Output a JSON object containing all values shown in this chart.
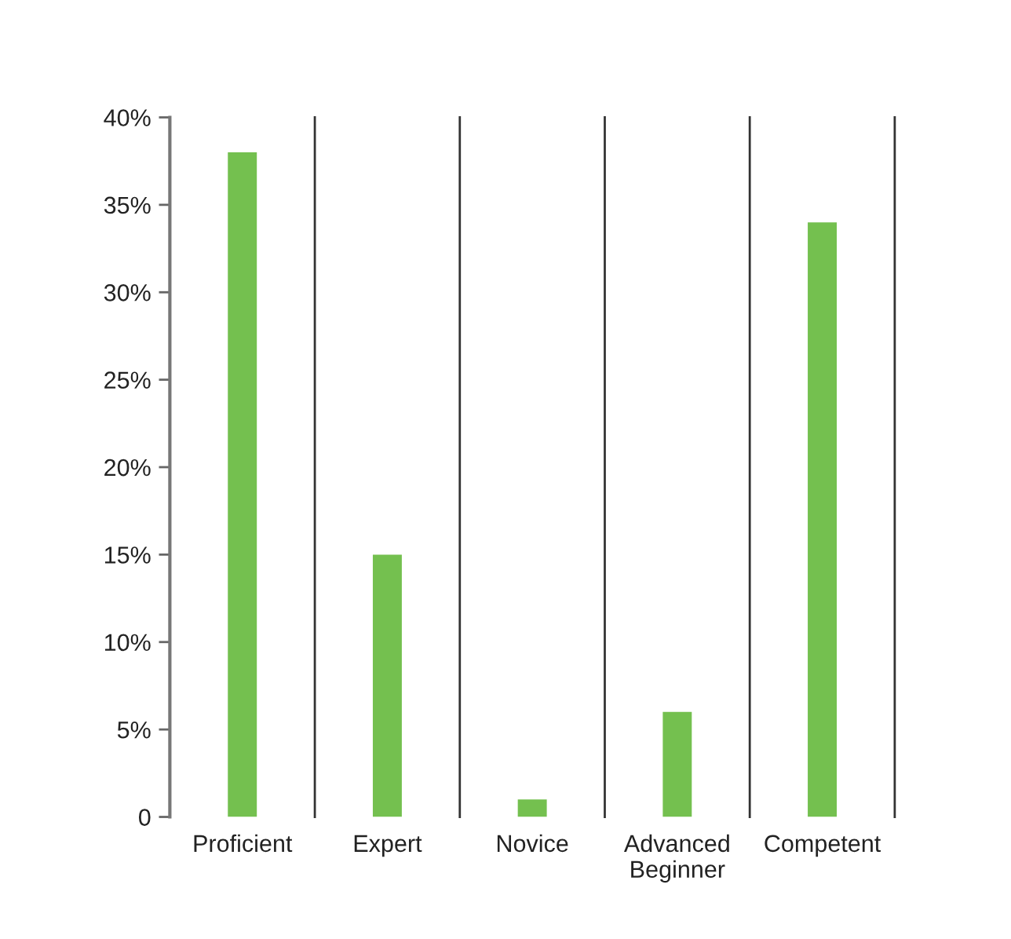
{
  "chart_data": {
    "type": "bar",
    "categories": [
      "Proficient",
      "Expert",
      "Novice",
      "Advanced Beginner",
      "Competent"
    ],
    "values": [
      38,
      15,
      1,
      6,
      34
    ],
    "color": "#74c04f",
    "ylim": [
      0,
      40
    ],
    "yticks": [
      0,
      {
        "value": 5,
        "label": "5%"
      },
      {
        "value": 10,
        "label": "10%"
      },
      {
        "value": 15,
        "label": "15%"
      },
      {
        "value": 20,
        "label": "20%"
      },
      {
        "value": 25,
        "label": "25%"
      },
      {
        "value": 30,
        "label": "30%"
      },
      {
        "value": 35,
        "label": "35%"
      },
      {
        "value": 40,
        "label": "40%"
      }
    ],
    "grid": "x"
  }
}
